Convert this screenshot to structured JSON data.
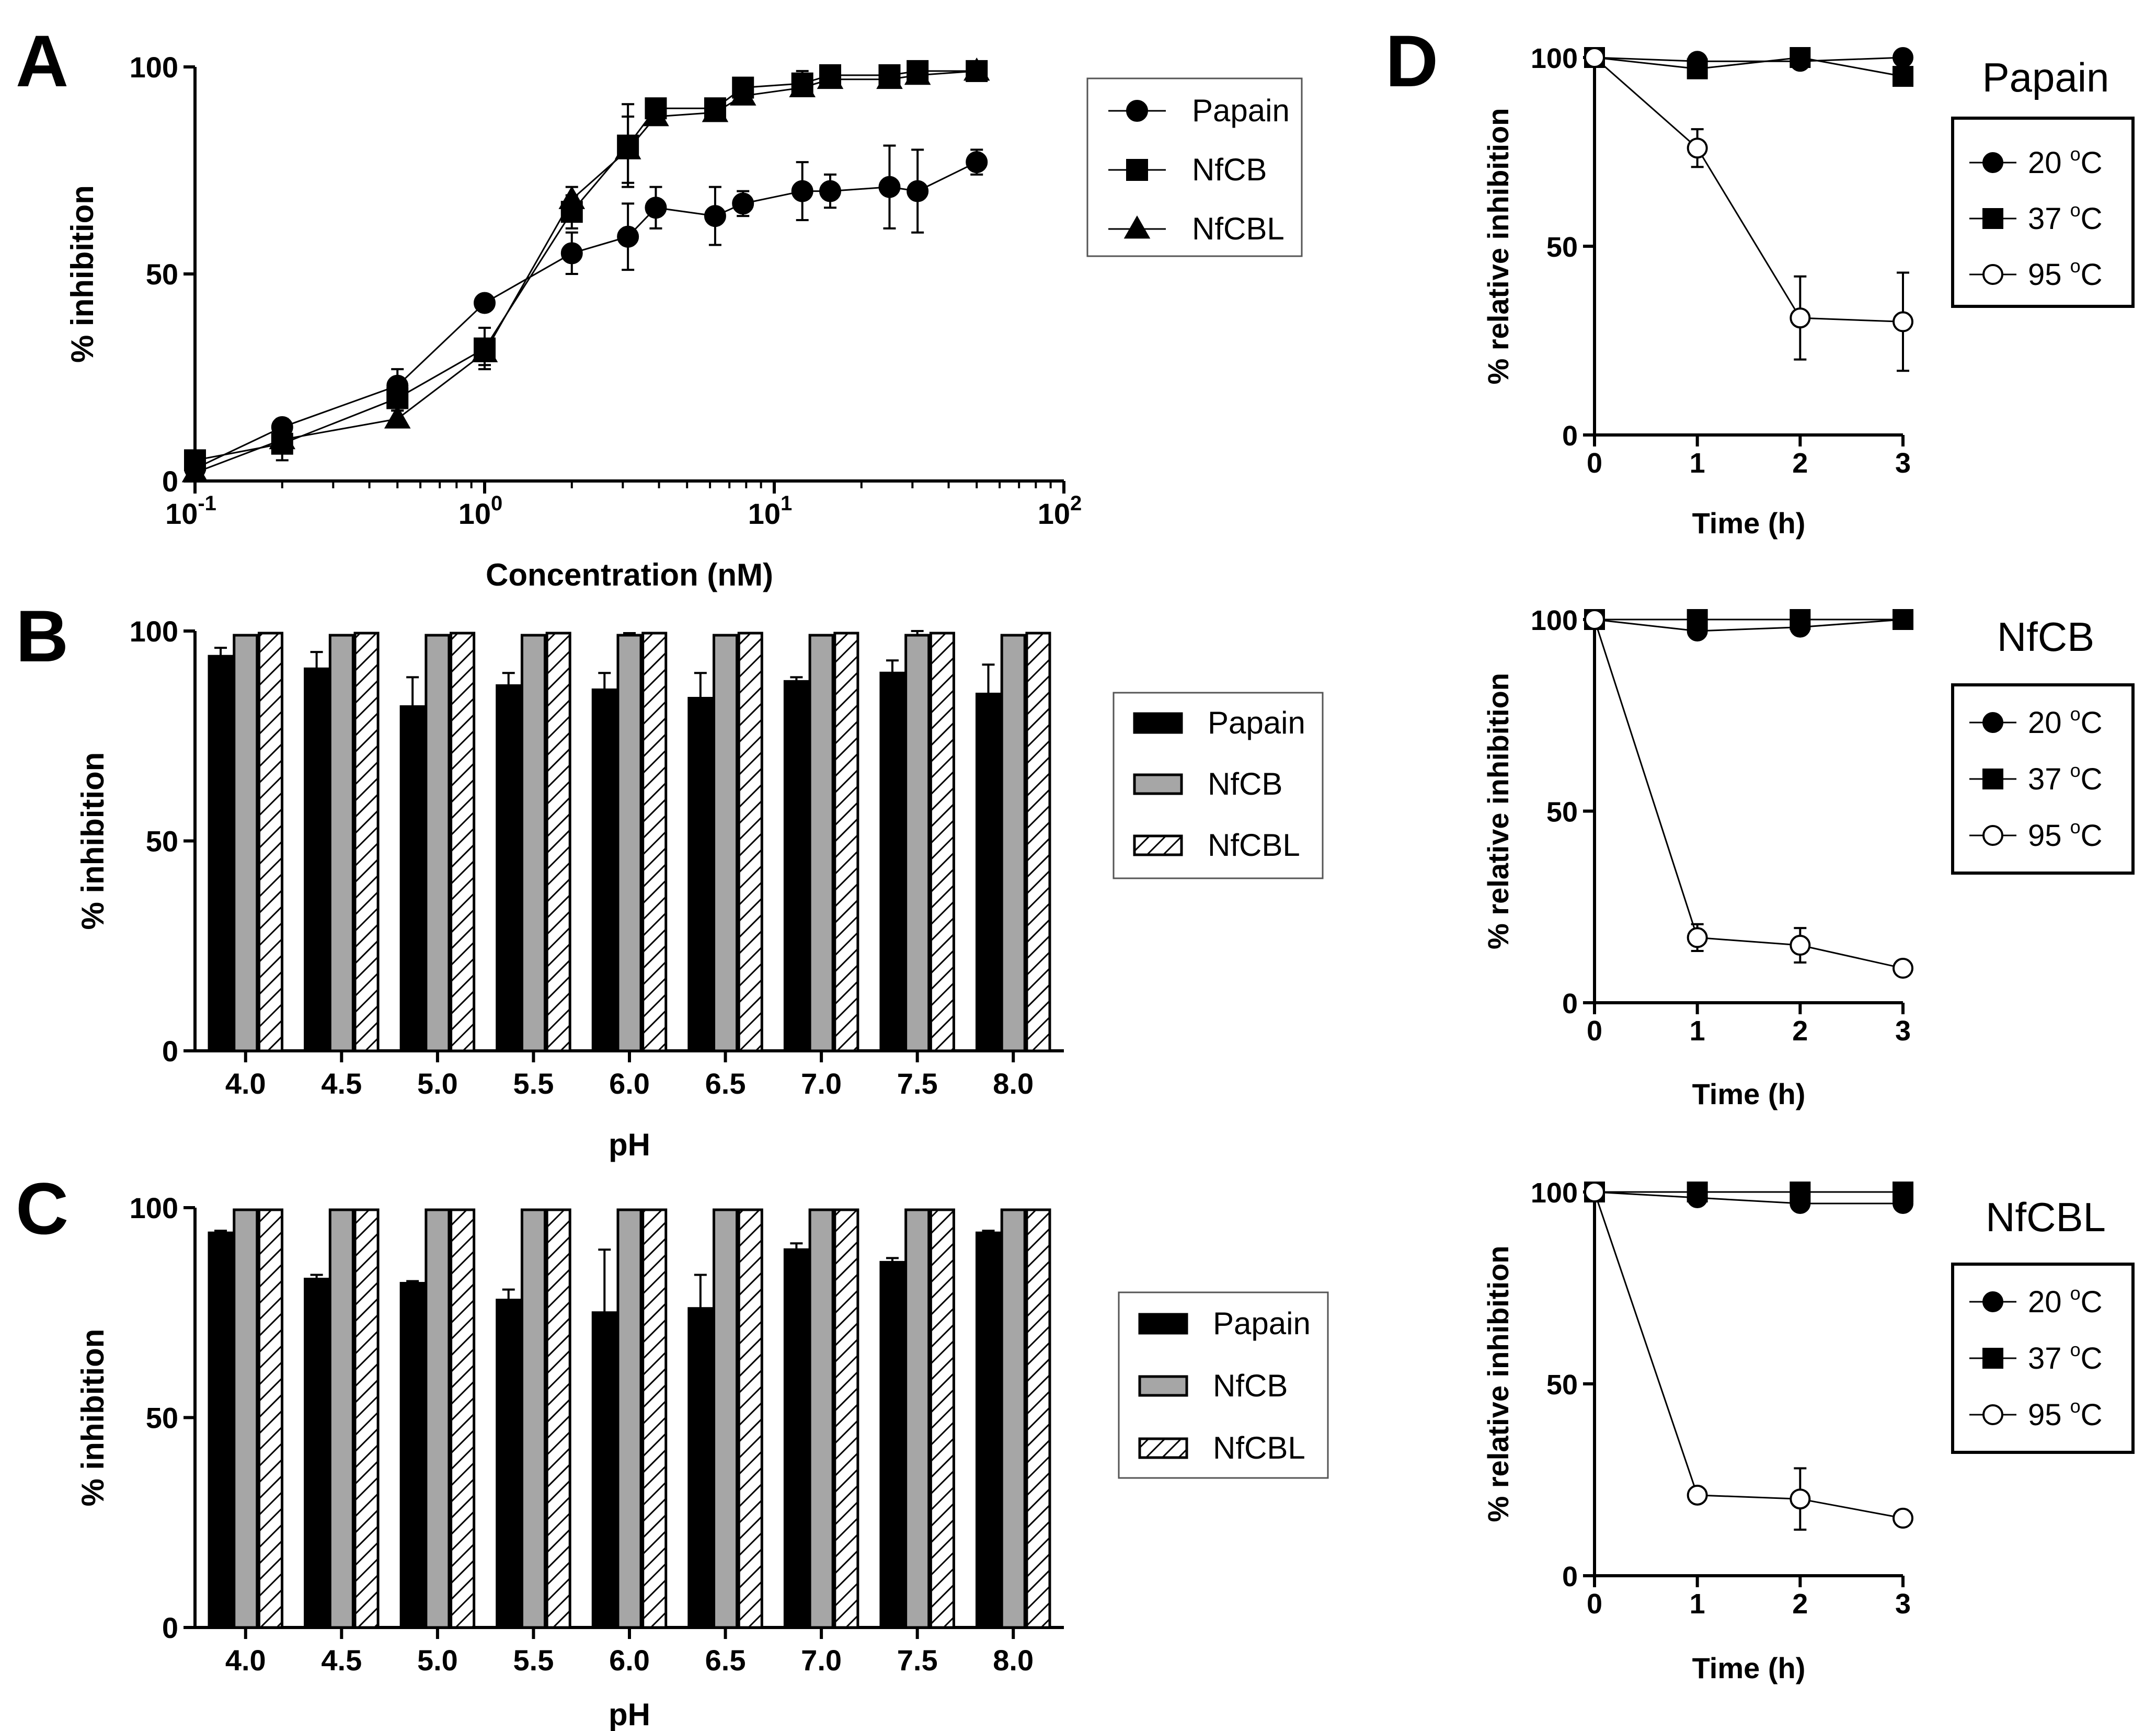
{
  "chart_data": [
    {
      "panel_label": "A",
      "type": "line",
      "xscale": "log",
      "xlabel": "Concentration (nM)",
      "ylabel": "% inhibition",
      "xlim": [
        0.1,
        100
      ],
      "ylim": [
        0,
        100
      ],
      "xticks": [
        0.1,
        1,
        10,
        100
      ],
      "xtick_labels": [
        {
          "base": "10",
          "exp": "-1"
        },
        {
          "base": "10",
          "exp": "0"
        },
        {
          "base": "10",
          "exp": "1"
        },
        {
          "base": "10",
          "exp": "2"
        }
      ],
      "yticks": [
        0,
        50,
        100
      ],
      "legend": "top-right",
      "series": [
        {
          "name": "Papain",
          "marker": "circle",
          "x": [
            0.1,
            0.2,
            0.5,
            1.0,
            2.0,
            3.125,
            3.9,
            6.25,
            7.8,
            12.5,
            15.6,
            25,
            31.25,
            50
          ],
          "y": [
            3,
            13,
            23,
            43,
            55,
            59,
            66,
            64,
            67,
            70,
            70,
            71,
            70,
            77
          ],
          "err": [
            1,
            2,
            4,
            1,
            5,
            8,
            5,
            7,
            3,
            7,
            4,
            10,
            10,
            3
          ]
        },
        {
          "name": "NfCB",
          "marker": "square",
          "x": [
            0.1,
            0.2,
            0.5,
            1.0,
            2.0,
            3.125,
            3.9,
            6.25,
            7.8,
            12.5,
            15.6,
            25,
            31.25,
            50
          ],
          "y": [
            5,
            9,
            20,
            32,
            65,
            81,
            90,
            90,
            95,
            96,
            98,
            98,
            99,
            99
          ],
          "err": [
            2,
            4,
            3,
            5,
            4,
            10,
            2,
            2,
            2,
            3,
            2,
            1,
            1,
            1
          ]
        },
        {
          "name": "NfCBL",
          "marker": "triangle",
          "x": [
            0.1,
            0.2,
            0.5,
            1.0,
            2.0,
            3.125,
            3.9,
            6.25,
            7.8,
            12.5,
            15.6,
            25,
            31.25,
            50
          ],
          "y": [
            2,
            10,
            15,
            31,
            68,
            80,
            88,
            89,
            93,
            95,
            97,
            97,
            98,
            99
          ],
          "err": [
            1,
            2,
            2,
            3,
            3,
            8,
            2,
            2,
            2,
            2,
            2,
            1,
            1,
            1
          ]
        }
      ]
    },
    {
      "panel_label": "B",
      "type": "bar",
      "xlabel": "pH",
      "ylabel": "% inhibition",
      "ylim": [
        0,
        100
      ],
      "yticks": [
        0,
        50,
        100
      ],
      "legend": "right",
      "categories": [
        "4.0",
        "4.5",
        "5.0",
        "5.5",
        "6.0",
        "6.5",
        "7.0",
        "7.5",
        "8.0"
      ],
      "series": [
        {
          "name": "Papain",
          "fill": "black",
          "values": [
            94,
            91,
            82,
            87,
            86,
            84,
            88,
            90,
            85
          ],
          "err": [
            2,
            4,
            7,
            3,
            4,
            6,
            1,
            3,
            7
          ]
        },
        {
          "name": "NfCB",
          "fill": "gray",
          "values": [
            99,
            99,
            99,
            99,
            99,
            99,
            99,
            99,
            99
          ],
          "err": [
            0,
            0,
            0,
            0,
            0.5,
            0,
            0,
            1,
            0
          ]
        },
        {
          "name": "NfCBL",
          "fill": "hatch",
          "values": [
            99.5,
            99.5,
            99.5,
            99.5,
            99.5,
            99.5,
            99.5,
            99.5,
            99.5
          ],
          "err": [
            0,
            0,
            0,
            0,
            0,
            0,
            0,
            0,
            0
          ]
        }
      ]
    },
    {
      "panel_label": "C",
      "type": "bar",
      "xlabel": "pH",
      "ylabel": "% inhibition",
      "ylim": [
        0,
        100
      ],
      "yticks": [
        0,
        50,
        100
      ],
      "legend": "right",
      "categories": [
        "4.0",
        "4.5",
        "5.0",
        "5.5",
        "6.0",
        "6.5",
        "7.0",
        "7.5",
        "8.0"
      ],
      "series": [
        {
          "name": "Papain",
          "fill": "black",
          "values": [
            94,
            83,
            82,
            78,
            75,
            76,
            90,
            87,
            94
          ],
          "err": [
            0.5,
            1,
            0.5,
            2.5,
            15,
            8,
            1.5,
            1,
            0.5
          ]
        },
        {
          "name": "NfCB",
          "fill": "gray",
          "values": [
            99.5,
            99.5,
            99.5,
            99.5,
            99.5,
            99.5,
            99.5,
            99.5,
            99.5
          ],
          "err": [
            0,
            0,
            0,
            0,
            0,
            0,
            0,
            0,
            0
          ]
        },
        {
          "name": "NfCBL",
          "fill": "hatch",
          "values": [
            99.5,
            99.5,
            99.5,
            99.5,
            99.5,
            99.5,
            99.5,
            99.5,
            99.5
          ],
          "err": [
            0,
            0,
            0,
            0,
            0,
            0,
            0,
            0,
            0
          ]
        }
      ]
    },
    {
      "panel_label": "D",
      "type": "line",
      "title": "Papain",
      "xlabel": "Time (h)",
      "ylabel": "% relative inhibition",
      "xlim": [
        0,
        3
      ],
      "ylim": [
        0,
        100
      ],
      "xticks": [
        0,
        1,
        2,
        3
      ],
      "yticks": [
        0,
        50,
        100
      ],
      "legend": "right",
      "series": [
        {
          "name": "20 °C",
          "label_num": "20 ",
          "label_sup": "o",
          "label_unit": "C",
          "marker": "circle",
          "x": [
            0,
            1,
            2,
            3
          ],
          "y": [
            100,
            99,
            99,
            100
          ],
          "err": [
            0,
            0,
            0,
            0
          ]
        },
        {
          "name": "37 °C",
          "label_num": "37 ",
          "label_sup": "o",
          "label_unit": "C",
          "marker": "square",
          "x": [
            0,
            1,
            2,
            3
          ],
          "y": [
            100,
            97,
            100,
            95
          ],
          "err": [
            0,
            0,
            0,
            0
          ]
        },
        {
          "name": "95 °C",
          "label_num": "95 ",
          "label_sup": "o",
          "label_unit": "C",
          "marker": "open-circle",
          "x": [
            0,
            1,
            2,
            3
          ],
          "y": [
            100,
            76,
            31,
            30
          ],
          "err": [
            0,
            5,
            11,
            13
          ]
        }
      ]
    },
    {
      "type": "line",
      "title": "NfCB",
      "xlabel": "Time (h)",
      "ylabel": "% relative inhibition",
      "xlim": [
        0,
        3
      ],
      "ylim": [
        0,
        100
      ],
      "xticks": [
        0,
        1,
        2,
        3
      ],
      "yticks": [
        0,
        50,
        100
      ],
      "legend": "right",
      "series": [
        {
          "name": "20 °C",
          "label_num": "20 ",
          "label_sup": "o",
          "label_unit": "C",
          "marker": "circle",
          "x": [
            0,
            1,
            2,
            3
          ],
          "y": [
            100,
            97,
            98,
            100
          ],
          "err": [
            0,
            0,
            0,
            0
          ]
        },
        {
          "name": "37 °C",
          "label_num": "37 ",
          "label_sup": "o",
          "label_unit": "C",
          "marker": "square",
          "x": [
            0,
            1,
            2,
            3
          ],
          "y": [
            100,
            100,
            100,
            100
          ],
          "err": [
            0,
            0,
            0,
            0
          ]
        },
        {
          "name": "95 °C",
          "label_num": "95 ",
          "label_sup": "o",
          "label_unit": "C",
          "marker": "open-circle",
          "x": [
            0,
            1,
            2,
            3
          ],
          "y": [
            100,
            17,
            15,
            9
          ],
          "err": [
            0,
            3.5,
            4.5,
            0
          ]
        }
      ]
    },
    {
      "type": "line",
      "title": "NfCBL",
      "xlabel": "Time (h)",
      "ylabel": "% relative inhibition",
      "xlim": [
        0,
        3
      ],
      "ylim": [
        0,
        100
      ],
      "xticks": [
        0,
        1,
        2,
        3
      ],
      "yticks": [
        0,
        50,
        100
      ],
      "legend": "right",
      "series": [
        {
          "name": "20 °C",
          "label_num": "20 ",
          "label_sup": "o",
          "label_unit": "C",
          "marker": "circle",
          "x": [
            0,
            1,
            2,
            3
          ],
          "y": [
            100,
            98.5,
            97,
            97
          ],
          "err": [
            0,
            0,
            0,
            0
          ]
        },
        {
          "name": "37 °C",
          "label_num": "37 ",
          "label_sup": "o",
          "label_unit": "C",
          "marker": "square",
          "x": [
            0,
            1,
            2,
            3
          ],
          "y": [
            100,
            100,
            100,
            100
          ],
          "err": [
            0,
            0,
            0,
            0
          ]
        },
        {
          "name": "95 °C",
          "label_num": "95 ",
          "label_sup": "o",
          "label_unit": "C",
          "marker": "open-circle",
          "x": [
            0,
            1,
            2,
            3
          ],
          "y": [
            100,
            21,
            20,
            15
          ],
          "err": [
            0,
            0,
            8,
            0
          ]
        }
      ]
    }
  ]
}
